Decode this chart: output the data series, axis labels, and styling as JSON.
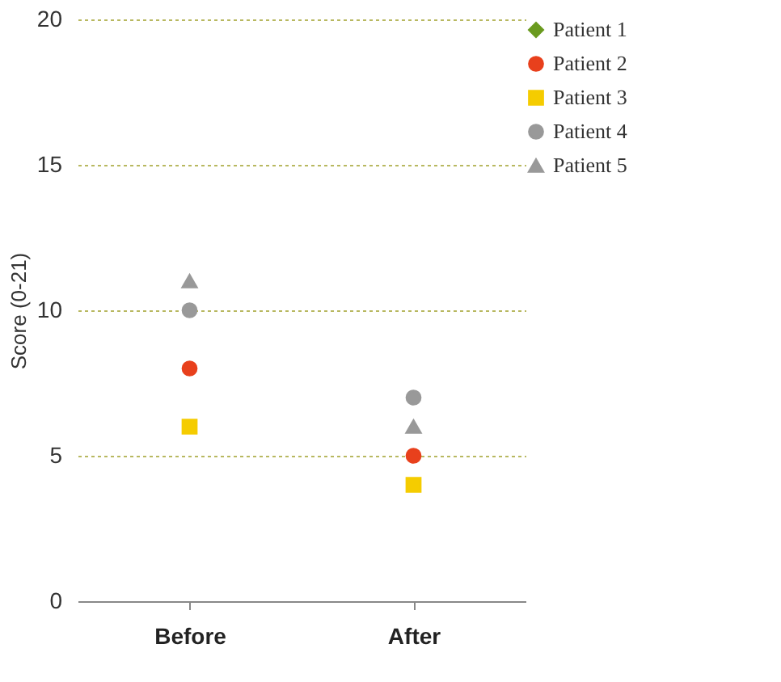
{
  "chart_data": {
    "type": "scatter",
    "ylabel": "Score (0-21)",
    "categories": [
      "Before",
      "After"
    ],
    "ylim": [
      0,
      20
    ],
    "yticks": [
      0,
      5,
      10,
      15,
      20
    ],
    "grid": "y",
    "legend": "right",
    "series": [
      {
        "name": "Patient 1",
        "color": "#6a9a1f",
        "marker": "diamond",
        "values": [
          null,
          null
        ]
      },
      {
        "name": "Patient 2",
        "color": "#e8401c",
        "marker": "circle",
        "values": [
          8,
          5
        ]
      },
      {
        "name": "Patient 3",
        "color": "#f5cc00",
        "marker": "square",
        "values": [
          6,
          4
        ]
      },
      {
        "name": "Patient 4",
        "color": "#999999",
        "marker": "circle",
        "values": [
          10,
          7
        ]
      },
      {
        "name": "Patient 5",
        "color": "#999999",
        "marker": "triangle",
        "values": [
          11,
          6
        ]
      }
    ]
  }
}
